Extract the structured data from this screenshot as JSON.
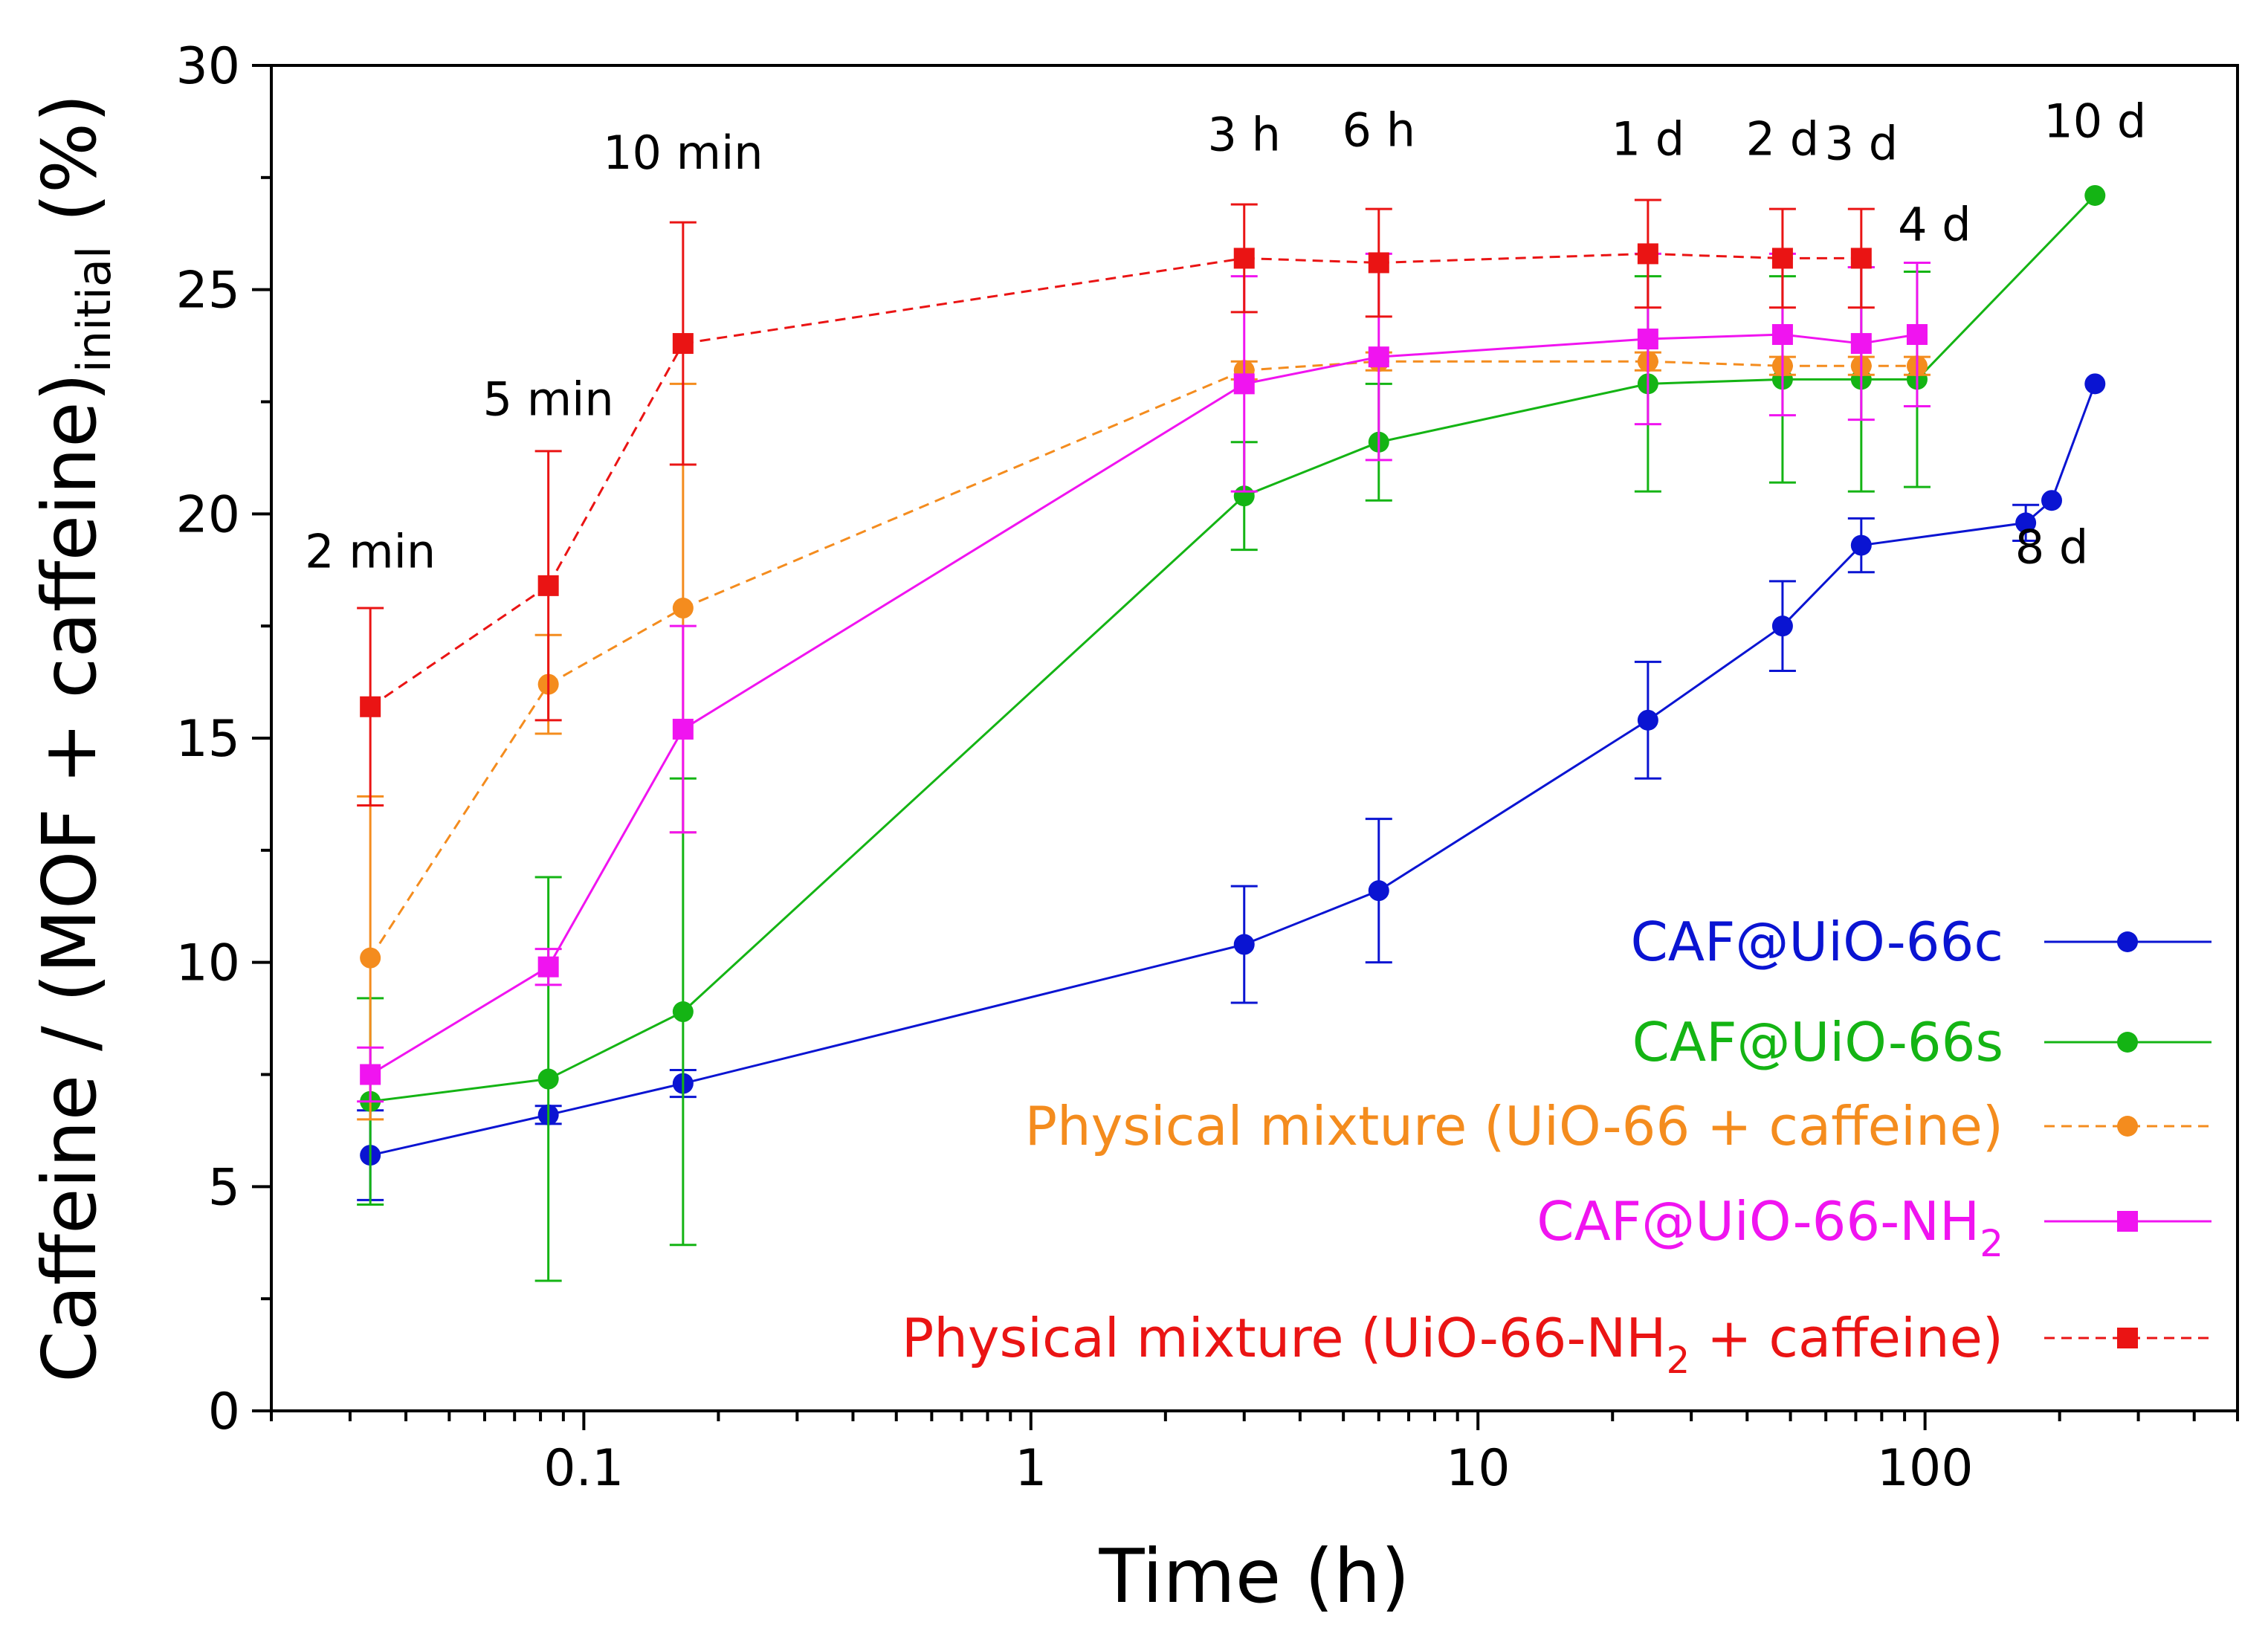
{
  "chart_data": {
    "type": "line",
    "xlabel": "Time (h)",
    "ylabel_parts": [
      "Caffeine / (MOF + caffeine)",
      "initial",
      " (%)"
    ],
    "xscale": "log",
    "xlim": [
      0.02,
      500
    ],
    "ylim": [
      0,
      30
    ],
    "x_ticks": [
      {
        "value": 0.1,
        "label": "0.1"
      },
      {
        "value": 1,
        "label": "1"
      },
      {
        "value": 10,
        "label": "10"
      },
      {
        "value": 100,
        "label": "100"
      }
    ],
    "y_ticks": [
      {
        "value": 0,
        "label": "0"
      },
      {
        "value": 5,
        "label": "5"
      },
      {
        "value": 10,
        "label": "10"
      },
      {
        "value": 15,
        "label": "15"
      },
      {
        "value": 20,
        "label": "20"
      },
      {
        "value": 25,
        "label": "25"
      },
      {
        "value": 30,
        "label": "30"
      }
    ],
    "grid": false,
    "legend_position": "bottom-right",
    "annotations": [
      {
        "text": "2 min",
        "x": 0.0333,
        "y": 18.8
      },
      {
        "text": "5 min",
        "x": 0.0833,
        "y": 22.2
      },
      {
        "text": "10 min",
        "x": 0.1667,
        "y": 27.7
      },
      {
        "text": "3 h",
        "x": 3,
        "y": 28.1
      },
      {
        "text": "6 h",
        "x": 6,
        "y": 28.2
      },
      {
        "text": "1 d",
        "x": 24,
        "y": 28.0
      },
      {
        "text": "2 d",
        "x": 48,
        "y": 28.0
      },
      {
        "text": "3 d",
        "x": 72,
        "y": 27.9
      },
      {
        "text": "4 d",
        "x": 105,
        "y": 26.1
      },
      {
        "text": "8 d",
        "x": 192,
        "y": 18.9
      },
      {
        "text": "10 d",
        "x": 240,
        "y": 28.4
      }
    ],
    "series": [
      {
        "name": "CAF@UiO-66c",
        "color": "#0a14d2",
        "marker": "circle",
        "dash": "solid",
        "x": [
          0.0333,
          0.0833,
          0.1667,
          3,
          6,
          24,
          48,
          72,
          168,
          192,
          240
        ],
        "y": [
          5.7,
          6.6,
          7.3,
          10.4,
          11.6,
          15.4,
          17.5,
          19.3,
          19.8,
          20.3,
          22.9
        ],
        "err": [
          1.0,
          0.2,
          0.3,
          1.3,
          1.6,
          1.3,
          1.0,
          0.6,
          0.4,
          0.0,
          0.0
        ]
      },
      {
        "name": "CAF@UiO-66s",
        "color": "#14b414",
        "marker": "circle",
        "dash": "solid",
        "x": [
          0.0333,
          0.0833,
          0.1667,
          3,
          6,
          24,
          48,
          72,
          96,
          240
        ],
        "y": [
          6.9,
          7.4,
          8.9,
          20.4,
          21.6,
          22.9,
          23.0,
          23.0,
          23.0,
          27.1
        ],
        "err": [
          2.3,
          4.5,
          5.2,
          1.2,
          1.3,
          2.4,
          2.3,
          2.5,
          2.4,
          0.0
        ]
      },
      {
        "name": "Physical mixture (UiO-66 + caffeine)",
        "color": "#f48c1e",
        "marker": "circle",
        "dash": "dashed",
        "x": [
          0.0333,
          0.0833,
          0.1667,
          3,
          6,
          24,
          48,
          72,
          96
        ],
        "y": [
          10.1,
          16.2,
          17.9,
          23.2,
          23.4,
          23.4,
          23.3,
          23.3,
          23.3
        ],
        "err": [
          3.6,
          1.1,
          5.0,
          0.2,
          0.2,
          0.2,
          0.2,
          0.2,
          0.2
        ]
      },
      {
        "name": "CAF@UiO-66-NH2",
        "name_main": "CAF@UiO-66-NH",
        "name_sub": "2",
        "name_tail": "",
        "color": "#f014f0",
        "marker": "square",
        "dash": "solid",
        "x": [
          0.0333,
          0.0833,
          0.1667,
          3,
          6,
          24,
          48,
          72,
          96
        ],
        "y": [
          7.5,
          9.9,
          15.2,
          22.9,
          23.5,
          23.9,
          24.0,
          23.8,
          24.0
        ],
        "err": [
          0.6,
          0.4,
          2.3,
          2.4,
          2.3,
          1.9,
          1.8,
          1.7,
          1.6
        ]
      },
      {
        "name": "Physical mixture (UiO-66-NH2 + caffeine)",
        "name_main": "Physical mixture (UiO-66-NH",
        "name_sub": "2",
        "name_tail": " + caffeine)",
        "color": "#ea1414",
        "marker": "square",
        "dash": "dashed",
        "x": [
          0.0333,
          0.0833,
          0.1667,
          3,
          6,
          24,
          48,
          72
        ],
        "y": [
          15.7,
          18.4,
          23.8,
          25.7,
          25.6,
          25.8,
          25.7,
          25.7
        ],
        "err": [
          2.2,
          3.0,
          2.7,
          1.2,
          1.2,
          1.2,
          1.1,
          1.1
        ]
      }
    ]
  }
}
